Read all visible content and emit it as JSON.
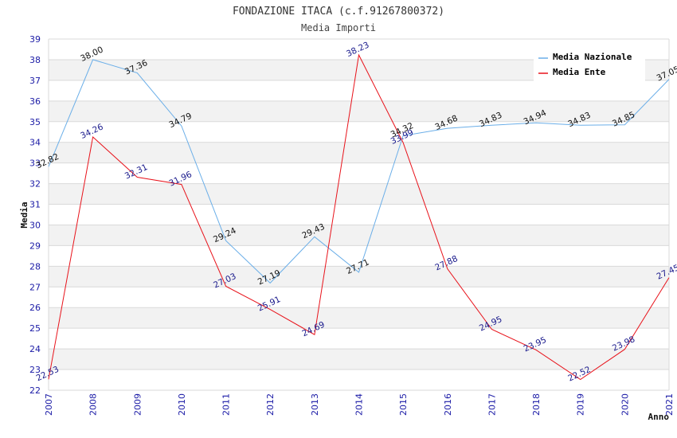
{
  "colors": {
    "national": "#6aaee8",
    "entity": "#e8121a",
    "national_label": "#111111",
    "entity_label": "#1a1a8c",
    "band": "#f2f2f2",
    "grid": "#d9d9d9"
  },
  "chart_data": {
    "type": "line",
    "title": "FONDAZIONE ITACA (c.f.91267800372)",
    "subtitle": "Media Importi",
    "xlabel": "Anno",
    "ylabel": "Media",
    "categories": [
      "2007",
      "2008",
      "2009",
      "2010",
      "2011",
      "2012",
      "2013",
      "2014",
      "2015",
      "2016",
      "2017",
      "2018",
      "2019",
      "2020",
      "2021"
    ],
    "ylim": [
      22,
      39
    ],
    "yticks": [
      22,
      23,
      24,
      25,
      26,
      27,
      28,
      29,
      30,
      31,
      32,
      33,
      34,
      35,
      36,
      37,
      38,
      39
    ],
    "grid": true,
    "legend_position": "top-right",
    "series": [
      {
        "name": "Media Nazionale",
        "color": "#6aaee8",
        "values": [
          32.82,
          38.0,
          37.36,
          34.79,
          29.24,
          27.19,
          29.43,
          27.71,
          34.32,
          34.68,
          34.83,
          34.94,
          34.83,
          34.85,
          37.05
        ],
        "labels": [
          "32.82",
          "38.00",
          "37.36",
          "34.79",
          "29.24",
          "27.19",
          "29.43",
          "27.71",
          "34.32",
          "34.68",
          "34.83",
          "34.94",
          "34.83",
          "34.85",
          "37.05"
        ]
      },
      {
        "name": "Media Ente",
        "color": "#e8121a",
        "values": [
          22.53,
          34.26,
          32.31,
          31.96,
          27.03,
          25.91,
          24.69,
          38.23,
          33.99,
          27.88,
          24.95,
          23.95,
          22.52,
          23.98,
          27.45
        ],
        "labels": [
          "22.53",
          "34.26",
          "32.31",
          "31.96",
          "27.03",
          "25.91",
          "24.69",
          "38.23",
          "33.99",
          "27.88",
          "24.95",
          "23.95",
          "22.52",
          "23.98",
          "27.45"
        ]
      }
    ]
  }
}
